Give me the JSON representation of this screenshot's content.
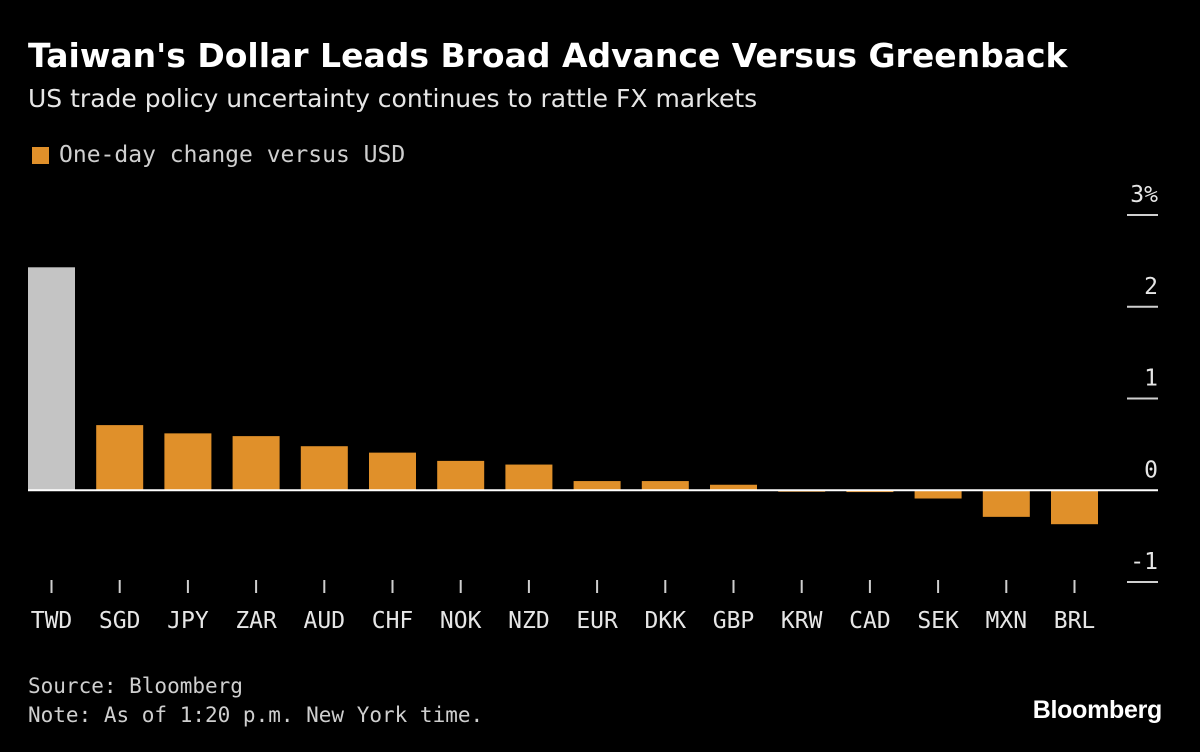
{
  "header": {
    "title": "Taiwan's Dollar Leads Broad Advance Versus Greenback",
    "subtitle": "US trade policy uncertainty continues to rattle FX markets"
  },
  "legend": {
    "label": "One-day change versus USD"
  },
  "colors": {
    "primary": "#E0902A",
    "highlight": "#C4C4C4",
    "background": "#000000",
    "axis": "#FFFFFF"
  },
  "chart_data": {
    "type": "bar",
    "title": "Taiwan's Dollar Leads Broad Advance Versus Greenback",
    "subtitle": "US trade policy uncertainty continues to rattle FX markets",
    "xlabel": "",
    "ylabel": "",
    "categories": [
      "TWD",
      "SGD",
      "JPY",
      "ZAR",
      "AUD",
      "CHF",
      "NOK",
      "NZD",
      "EUR",
      "DKK",
      "GBP",
      "KRW",
      "CAD",
      "SEK",
      "MXN",
      "BRL"
    ],
    "series": [
      {
        "name": "One-day change versus USD",
        "values": [
          2.43,
          0.71,
          0.62,
          0.59,
          0.48,
          0.41,
          0.32,
          0.28,
          0.1,
          0.1,
          0.06,
          -0.01,
          -0.02,
          -0.09,
          -0.29,
          -0.37
        ]
      }
    ],
    "highlight_category": "TWD",
    "ylim": [
      -1,
      3
    ],
    "yticks": [
      3,
      2,
      1,
      0,
      -1
    ],
    "ytick_labels": [
      "3%",
      "2",
      "1",
      "0",
      "-1"
    ],
    "y_axis_side": "right",
    "grid": false,
    "legend_position": "top-left"
  },
  "footer": {
    "source": "Source: Bloomberg",
    "note": "Note: As of 1:20 p.m. New York time."
  },
  "brand": {
    "logo_text": "Bloomberg"
  }
}
